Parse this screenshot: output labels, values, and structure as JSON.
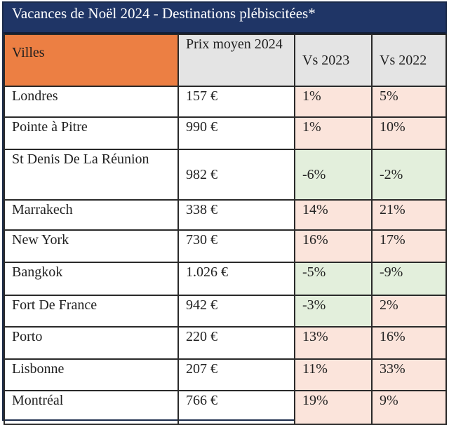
{
  "title": "Vacances de Noël 2024 - Destinations plébiscitées*",
  "headers": [
    "Villes",
    "Prix moyen 2024",
    "Vs 2023",
    "Vs 2022"
  ],
  "rows": [
    {
      "city": "Londres",
      "price": "157 €",
      "vs2023": "1%",
      "vs2022": "5%"
    },
    {
      "city": "Pointe à Pitre",
      "price": "990 €",
      "vs2023": "1%",
      "vs2022": "10%"
    },
    {
      "city": "St Denis De La Réunion",
      "price": "982 €",
      "vs2023": "-6%",
      "vs2022": "-2%"
    },
    {
      "city": "Marrakech",
      "price": "338 €",
      "vs2023": "14%",
      "vs2022": "21%"
    },
    {
      "city": "New York",
      "price": "730 €",
      "vs2023": "16%",
      "vs2022": "17%"
    },
    {
      "city": "Bangkok",
      "price": "1.026 €",
      "vs2023": "-5%",
      "vs2022": "-9%"
    },
    {
      "city": "Fort De France",
      "price": "942 €",
      "vs2023": "-3%",
      "vs2022": "2%"
    },
    {
      "city": "Porto",
      "price": "220 €",
      "vs2023": "13%",
      "vs2022": "16%"
    },
    {
      "city": "Lisbonne",
      "price": "207 €",
      "vs2023": "11%",
      "vs2022": "33%"
    },
    {
      "city": "Montréal",
      "price": "766 €",
      "vs2023": "19%",
      "vs2022": "9%"
    }
  ],
  "colors": {
    "title_bg": "#1f3566",
    "header_city_bg": "#ec7f43",
    "header_bg": "#e4e4e4",
    "increase_bg": "#fbe4db",
    "decrease_bg": "#e3efdc"
  }
}
